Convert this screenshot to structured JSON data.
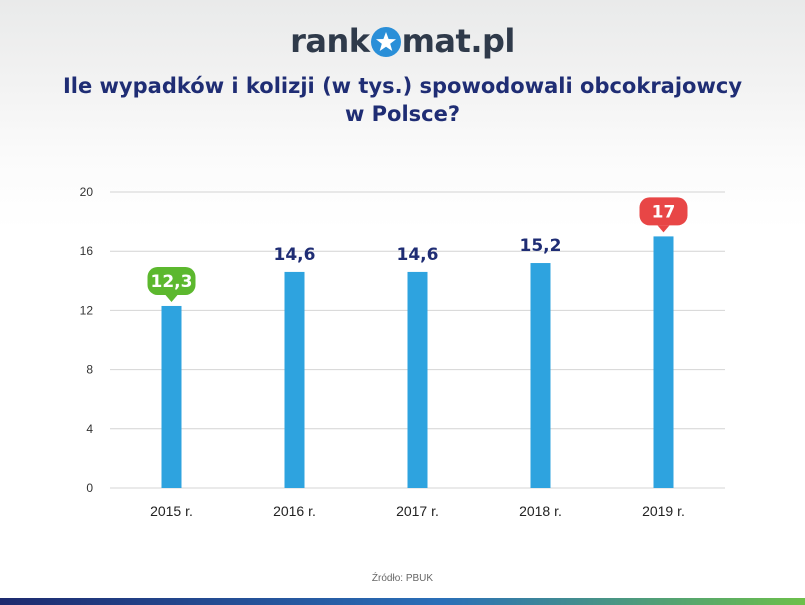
{
  "header": {
    "logo_pre": "rank",
    "logo_post": "mat.pl",
    "title_line1": "Ile wypadków i kolizji (w tys.) spowodowali obcokrajowcy",
    "title_line2": "w Polsce?"
  },
  "chart_data": {
    "type": "bar",
    "title": "Ile wypadków i kolizji (w tys.) spowodowali obcokrajowcy w Polsce?",
    "categories": [
      "2015 r.",
      "2016 r.",
      "2017 r.",
      "2018 r.",
      "2019 r."
    ],
    "values": [
      12.3,
      14.6,
      14.6,
      15.2,
      17
    ],
    "value_labels": [
      "12,3",
      "14,6",
      "14,6",
      "15,2",
      "17"
    ],
    "ylim": [
      0,
      20
    ],
    "yticks": [
      "0",
      "4",
      "8",
      "12",
      "16",
      "20"
    ],
    "grid": true,
    "bar_color": "#2ea3df",
    "highlights": [
      {
        "category": "2015 r.",
        "color": "#5cb82e"
      },
      {
        "category": "2019 r.",
        "color": "#e84646"
      }
    ],
    "label_color": "#1f2d74"
  },
  "footer": {
    "source": "Źródło: PBUK"
  }
}
